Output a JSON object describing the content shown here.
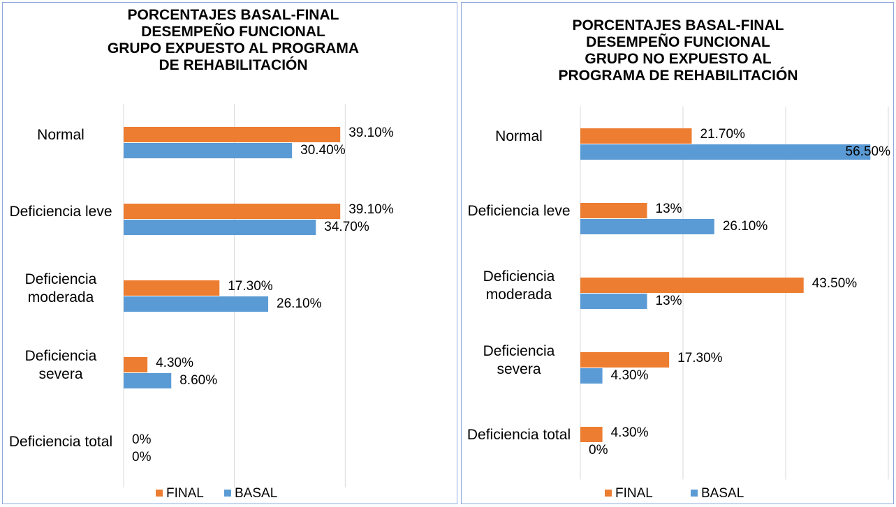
{
  "chart_data": [
    {
      "type": "barh",
      "title": "PORCENTAJES BASAL-FINAL\nDESEMPEÑO FUNCIONAL\nGRUPO EXPUESTO AL PROGRAMA\nDE REHABILITACIÓN",
      "categories": [
        "Normal",
        "Deficiencia leve",
        "Deficiencia moderada",
        "Deficiencia severa",
        "Deficiencia total"
      ],
      "series": [
        {
          "name": "FINAL",
          "color": "#ed7d31",
          "values": [
            39.1,
            39.1,
            17.3,
            4.3,
            0
          ],
          "value_labels": [
            "39.10%",
            "39.10%",
            "17.30%",
            "4.30%",
            "0%"
          ]
        },
        {
          "name": "BASAL",
          "color": "#5b9bd5",
          "values": [
            30.4,
            34.7,
            26.1,
            8.6,
            0
          ],
          "value_labels": [
            "30.40%",
            "34.70%",
            "26.10%",
            "8.60%",
            "0%"
          ]
        }
      ],
      "xlim": [
        0,
        60
      ],
      "xticks": [
        0,
        20,
        40
      ],
      "grid": true,
      "legend": "bottom"
    },
    {
      "type": "barh",
      "title": "PORCENTAJES BASAL-FINAL\nDESEMPEÑO FUNCIONAL\nGRUPO NO EXPUESTO AL\nPROGRAMA DE REHABILITACIÓN",
      "categories": [
        "Normal",
        "Deficiencia leve",
        "Deficiencia moderada",
        "Deficiencia severa",
        "Deficiencia total"
      ],
      "series": [
        {
          "name": "FINAL",
          "color": "#ed7d31",
          "values": [
            21.7,
            13,
            43.5,
            17.3,
            4.3
          ],
          "value_labels": [
            "21.70%",
            "13%",
            "43.50%",
            "17.30%",
            "4.30%"
          ]
        },
        {
          "name": "BASAL",
          "color": "#5b9bd5",
          "values": [
            56.5,
            26.1,
            13,
            4.3,
            0
          ],
          "value_labels": [
            "56.50%",
            "26.10%",
            "13%",
            "4.30%",
            "0%"
          ]
        }
      ],
      "xlim": [
        0,
        60
      ],
      "xticks": [
        0,
        20,
        40,
        60
      ],
      "grid": true,
      "legend": "bottom"
    }
  ]
}
